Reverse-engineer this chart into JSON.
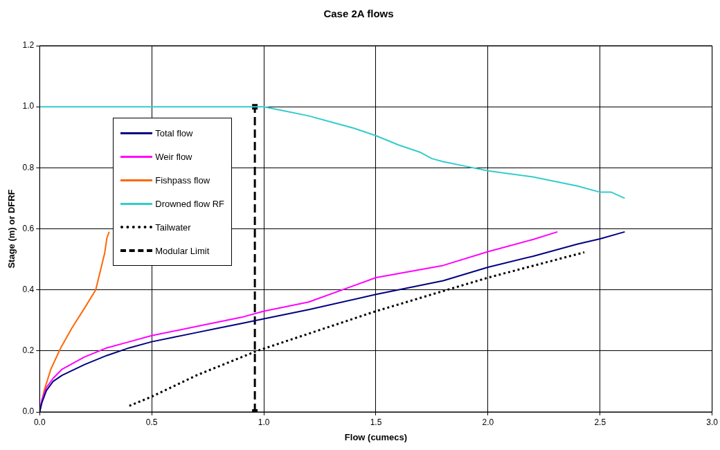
{
  "chart_data": {
    "type": "line",
    "title": "Case 2A flows",
    "xlabel": "Flow (cumecs)",
    "ylabel": "Stage (m) or DFRF",
    "xlim": [
      0,
      3
    ],
    "ylim": [
      0,
      1.2
    ],
    "xticks": [
      {
        "value": 0,
        "label": "0.0"
      },
      {
        "value": 0.5,
        "label": "0.5"
      },
      {
        "value": 1,
        "label": "1.0"
      },
      {
        "value": 1.5,
        "label": "1.5"
      },
      {
        "value": 2,
        "label": "2.0"
      },
      {
        "value": 2.5,
        "label": "2.5"
      },
      {
        "value": 3,
        "label": "3.0"
      }
    ],
    "yticks": [
      {
        "value": 0,
        "label": "0.0"
      },
      {
        "value": 0.2,
        "label": "0.2"
      },
      {
        "value": 0.4,
        "label": "0.4"
      },
      {
        "value": 0.6,
        "label": "0.6"
      },
      {
        "value": 0.8,
        "label": "0.8"
      },
      {
        "value": 1,
        "label": "1.0"
      },
      {
        "value": 1.2,
        "label": "1.2"
      }
    ],
    "grid": true,
    "legend": "top left",
    "marker": "none",
    "line_style": "solid",
    "series": [
      {
        "name": "Total flow",
        "color": "#000080",
        "x": [
          0,
          0.01,
          0.03,
          0.06,
          0.1,
          0.2,
          0.3,
          0.4,
          0.5,
          0.6,
          0.7,
          0.8,
          0.9,
          1.0,
          1.2,
          1.5,
          1.8,
          2.0,
          2.2,
          2.4,
          2.5,
          2.61
        ],
        "values": [
          0,
          0.03,
          0.07,
          0.1,
          0.12,
          0.155,
          0.185,
          0.21,
          0.23,
          0.245,
          0.26,
          0.275,
          0.29,
          0.305,
          0.335,
          0.385,
          0.43,
          0.474,
          0.51,
          0.55,
          0.567,
          0.59
        ]
      },
      {
        "name": "Weir flow",
        "color": "#ff00ff",
        "x": [
          0,
          0.01,
          0.03,
          0.06,
          0.1,
          0.2,
          0.3,
          0.4,
          0.5,
          0.7,
          0.9,
          1.0,
          1.2,
          1.5,
          1.8,
          2.0,
          2.2,
          2.31
        ],
        "values": [
          0,
          0.04,
          0.08,
          0.11,
          0.14,
          0.18,
          0.21,
          0.23,
          0.25,
          0.28,
          0.31,
          0.33,
          0.36,
          0.44,
          0.48,
          0.525,
          0.565,
          0.59
        ]
      },
      {
        "name": "Fishpass flow",
        "color": "#ff6600",
        "x": [
          0,
          0.02,
          0.05,
          0.094,
          0.144,
          0.2,
          0.25,
          0.27,
          0.29,
          0.3,
          0.31
        ],
        "values": [
          0,
          0.07,
          0.14,
          0.21,
          0.275,
          0.34,
          0.4,
          0.46,
          0.52,
          0.57,
          0.59
        ]
      },
      {
        "name": "Drowned flow RF",
        "color": "#33cccc",
        "x": [
          0,
          0.5,
          1.0,
          1.1,
          1.2,
          1.3,
          1.4,
          1.5,
          1.6,
          1.7,
          1.75,
          1.8,
          1.9,
          2.0,
          2.2,
          2.4,
          2.5,
          2.55,
          2.61
        ],
        "values": [
          1,
          1,
          1,
          0.985,
          0.97,
          0.95,
          0.93,
          0.905,
          0.875,
          0.85,
          0.83,
          0.82,
          0.805,
          0.79,
          0.77,
          0.74,
          0.72,
          0.72,
          0.7
        ]
      },
      {
        "name": "Tailwater",
        "color": "#000000",
        "line_style": "dotted",
        "x": [
          0.4,
          0.5,
          0.7,
          0.97,
          1.5,
          2.0,
          2.43
        ],
        "values": [
          0.02,
          0.05,
          0.12,
          0.2,
          0.33,
          0.44,
          0.523
        ]
      },
      {
        "name": "Modular Limit",
        "color": "#000000",
        "line_style": "dashed",
        "marker": "square",
        "x": [
          0.96,
          0.96
        ],
        "values": [
          0,
          1
        ]
      }
    ]
  }
}
